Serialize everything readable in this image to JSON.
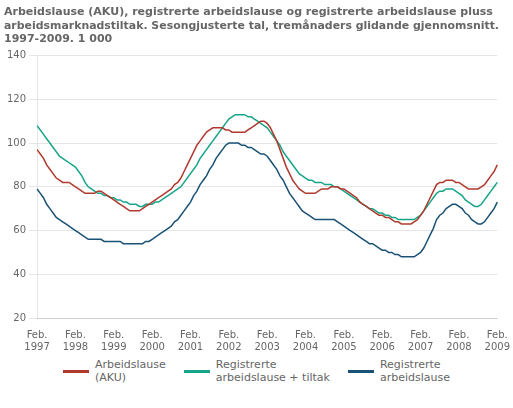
{
  "chart_data": {
    "type": "line",
    "title": "Arbeidslause (AKU), registrerte arbeidslause og registrerte arbeidslause pluss\narbeidsmarknadstiltak. Sesongjusterte tal, tremånaders glidande gjennomsnitt.\n1997-2009. 1 000",
    "categories": [
      "Feb.\n1997",
      null,
      null,
      null,
      null,
      null,
      null,
      null,
      null,
      null,
      null,
      null,
      "Feb.\n1998",
      null,
      null,
      null,
      null,
      null,
      null,
      null,
      null,
      null,
      null,
      null,
      "Feb.\n1999",
      null,
      null,
      null,
      null,
      null,
      null,
      null,
      null,
      null,
      null,
      null,
      "Feb.\n2000",
      null,
      null,
      null,
      null,
      null,
      null,
      null,
      null,
      null,
      null,
      null,
      "Feb.\n2001",
      null,
      null,
      null,
      null,
      null,
      null,
      null,
      null,
      null,
      null,
      null,
      "Feb.\n2002",
      null,
      null,
      null,
      null,
      null,
      null,
      null,
      null,
      null,
      null,
      null,
      "Feb.\n2003",
      null,
      null,
      null,
      null,
      null,
      null,
      null,
      null,
      null,
      null,
      null,
      "Feb.\n2004",
      null,
      null,
      null,
      null,
      null,
      null,
      null,
      null,
      null,
      null,
      null,
      "Feb.\n2005",
      null,
      null,
      null,
      null,
      null,
      null,
      null,
      null,
      null,
      null,
      null,
      "Feb.\n2006",
      null,
      null,
      null,
      null,
      null,
      null,
      null,
      null,
      null,
      null,
      null,
      "Feb.\n2007",
      null,
      null,
      null,
      null,
      null,
      null,
      null,
      null,
      null,
      null,
      null,
      "Feb.\n2008",
      null,
      null,
      null,
      null,
      null,
      null,
      null,
      null,
      null,
      null,
      null,
      "Feb.\n2009"
    ],
    "series": [
      {
        "name": "Arbeidslause\n(AKU)",
        "color": "#b03a2e",
        "values": [
          97,
          95,
          93,
          90,
          88,
          86,
          84,
          83,
          82,
          82,
          82,
          81,
          80,
          79,
          78,
          77,
          77,
          77,
          77,
          78,
          78,
          77,
          76,
          75,
          74,
          73,
          72,
          71,
          70,
          69,
          69,
          69,
          69,
          70,
          71,
          72,
          73,
          74,
          75,
          76,
          77,
          78,
          79,
          81,
          82,
          84,
          87,
          90,
          93,
          96,
          99,
          101,
          103,
          105,
          106,
          107,
          107,
          107,
          107,
          106,
          106,
          105,
          105,
          105,
          105,
          105,
          106,
          107,
          108,
          109,
          110,
          110,
          109,
          107,
          104,
          101,
          97,
          93,
          89,
          86,
          83,
          81,
          79,
          78,
          77,
          77,
          77,
          77,
          78,
          79,
          79,
          79,
          80,
          80,
          80,
          79,
          79,
          78,
          77,
          76,
          75,
          73,
          72,
          71,
          70,
          69,
          68,
          67,
          67,
          66,
          66,
          65,
          64,
          64,
          63,
          63,
          63,
          63,
          64,
          65,
          67,
          69,
          72,
          75,
          78,
          81,
          82,
          82,
          83,
          83,
          83,
          82,
          82,
          81,
          80,
          79,
          79,
          79,
          79,
          80,
          81,
          83,
          85,
          87,
          90
        ]
      },
      {
        "name": "Registrerte\narbeidslause + tiltak",
        "color": "#17a589",
        "values": [
          108,
          106,
          104,
          102,
          100,
          98,
          96,
          94,
          93,
          92,
          91,
          90,
          89,
          87,
          85,
          82,
          80,
          79,
          78,
          77,
          77,
          76,
          76,
          75,
          75,
          74,
          74,
          73,
          73,
          72,
          72,
          72,
          71,
          71,
          72,
          72,
          72,
          73,
          73,
          74,
          75,
          76,
          77,
          78,
          79,
          80,
          82,
          84,
          86,
          88,
          90,
          93,
          95,
          97,
          99,
          101,
          103,
          105,
          107,
          109,
          111,
          112,
          113,
          113,
          113,
          113,
          112,
          112,
          111,
          110,
          109,
          108,
          107,
          105,
          103,
          101,
          99,
          96,
          94,
          92,
          90,
          88,
          86,
          85,
          84,
          83,
          83,
          82,
          82,
          82,
          81,
          81,
          81,
          80,
          80,
          79,
          78,
          77,
          76,
          75,
          74,
          73,
          72,
          71,
          70,
          70,
          69,
          68,
          68,
          67,
          67,
          66,
          66,
          65,
          65,
          65,
          65,
          65,
          65,
          66,
          67,
          69,
          71,
          73,
          75,
          77,
          78,
          78,
          79,
          79,
          79,
          78,
          77,
          76,
          74,
          73,
          72,
          71,
          71,
          72,
          74,
          76,
          78,
          80,
          82
        ]
      },
      {
        "name": "Registrerte\narbeidslause",
        "color": "#1a5276",
        "values": [
          79,
          77,
          75,
          72,
          70,
          68,
          66,
          65,
          64,
          63,
          62,
          61,
          60,
          59,
          58,
          57,
          56,
          56,
          56,
          56,
          56,
          55,
          55,
          55,
          55,
          55,
          55,
          54,
          54,
          54,
          54,
          54,
          54,
          54,
          55,
          55,
          56,
          57,
          58,
          59,
          60,
          61,
          62,
          64,
          65,
          67,
          69,
          71,
          73,
          76,
          78,
          81,
          83,
          85,
          88,
          90,
          93,
          95,
          97,
          99,
          100,
          100,
          100,
          100,
          99,
          99,
          98,
          98,
          97,
          96,
          95,
          95,
          94,
          92,
          90,
          88,
          85,
          83,
          80,
          77,
          75,
          73,
          71,
          69,
          68,
          67,
          66,
          65,
          65,
          65,
          65,
          65,
          65,
          65,
          64,
          63,
          62,
          61,
          60,
          59,
          58,
          57,
          56,
          55,
          54,
          54,
          53,
          52,
          51,
          51,
          50,
          50,
          49,
          49,
          48,
          48,
          48,
          48,
          48,
          49,
          50,
          52,
          55,
          58,
          61,
          65,
          67,
          68,
          70,
          71,
          72,
          72,
          71,
          70,
          68,
          67,
          65,
          64,
          63,
          63,
          64,
          66,
          68,
          70,
          73
        ]
      }
    ],
    "ylim": [
      20,
      140
    ],
    "yticks": [
      20,
      40,
      60,
      80,
      100,
      120,
      140
    ],
    "grid": true,
    "legend": "bottom"
  }
}
